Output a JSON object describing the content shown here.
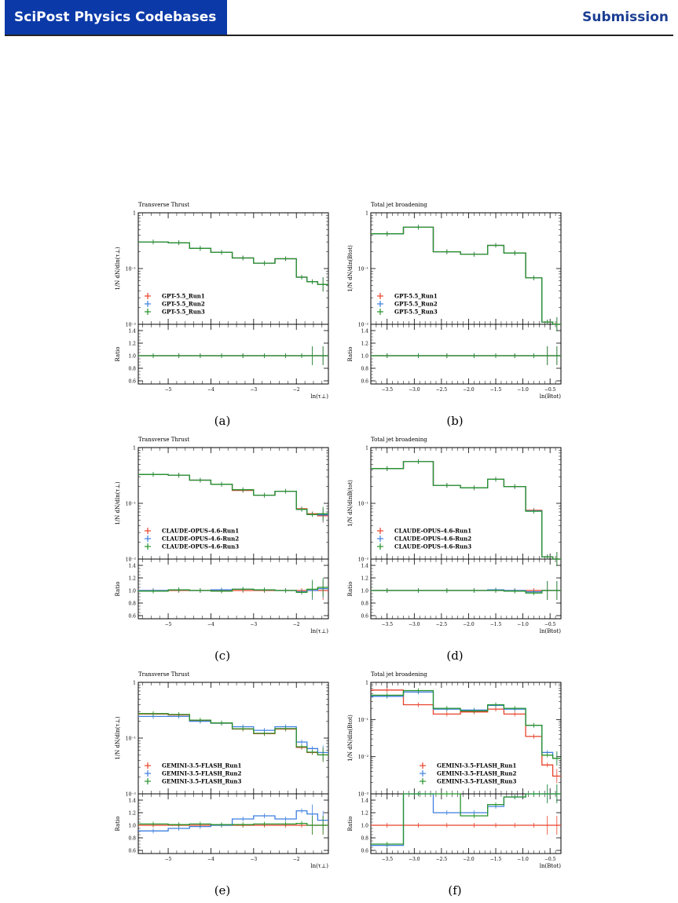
{
  "header": {
    "journal": "SciPost Physics Codebases",
    "status": "Submission"
  },
  "captions": [
    "(a)",
    "(b)",
    "(c)",
    "(d)",
    "(e)",
    "(f)"
  ],
  "chart_data": [
    {
      "type": "line",
      "panel": "(a)",
      "title": "Transverse Thrust",
      "ylabel": "1/N dN/dln(τ⊥)",
      "xlabel": "ln(τ⊥)",
      "ratio_ylabel": "Ratio",
      "log_y": true,
      "xlim": [
        -5.7,
        -1.25
      ],
      "ylim": [
        0.01,
        1.0
      ],
      "ratio_ylim": [
        0.55,
        1.5
      ],
      "x_ticks": [
        -5,
        -4,
        -3,
        -2
      ],
      "y_ticks": [
        "10⁻²",
        "10⁻¹",
        "1"
      ],
      "ratio_ticks": [
        0.6,
        0.8,
        1.0,
        1.2,
        1.4
      ],
      "legend_position": "bottom-left",
      "bin_edges": [
        -5.7,
        -5.0,
        -4.5,
        -4.0,
        -3.5,
        -3.0,
        -2.5,
        -2.0,
        -1.75,
        -1.5,
        -1.25
      ],
      "series": [
        {
          "name": "GPT-5.5_Run1",
          "color": "#e8422a",
          "values": [
            0.3,
            0.29,
            0.23,
            0.195,
            0.155,
            0.125,
            0.15,
            0.07,
            0.058,
            0.052
          ],
          "ratio": [
            1,
            1,
            1,
            1,
            1,
            1,
            1,
            1,
            1,
            1
          ]
        },
        {
          "name": "GPT-5.5_Run2",
          "color": "#3f7fe0",
          "values": [
            0.3,
            0.29,
            0.23,
            0.195,
            0.155,
            0.125,
            0.15,
            0.07,
            0.058,
            0.052
          ],
          "ratio": [
            1,
            1,
            1,
            1,
            1,
            1,
            1,
            1,
            1,
            1
          ]
        },
        {
          "name": "GPT-5.5_Run3",
          "color": "#27932b",
          "values": [
            0.3,
            0.29,
            0.23,
            0.195,
            0.155,
            0.125,
            0.15,
            0.07,
            0.058,
            0.052
          ],
          "ratio": [
            1,
            1,
            1,
            1,
            1,
            1,
            1,
            1,
            1,
            1
          ]
        }
      ]
    },
    {
      "type": "line",
      "panel": "(b)",
      "title": "Total jet broadening",
      "ylabel": "1/N dN/dln(Btot)",
      "xlabel": "ln(Btot)",
      "ratio_ylabel": "Ratio",
      "log_y": true,
      "xlim": [
        -3.8,
        -0.3
      ],
      "ylim": [
        0.01,
        1.0
      ],
      "ratio_ylim": [
        0.55,
        1.5
      ],
      "x_ticks": [
        -3.5,
        -3.0,
        -2.5,
        -2.0,
        -1.5,
        -1.0,
        -0.5
      ],
      "y_ticks": [
        "10⁻²",
        "10⁻¹",
        "1"
      ],
      "ratio_ticks": [
        0.6,
        0.8,
        1.0,
        1.2,
        1.4
      ],
      "legend_position": "bottom-left",
      "bin_edges": [
        -3.8,
        -3.2,
        -2.65,
        -2.15,
        -1.65,
        -1.35,
        -0.95,
        -0.65,
        -0.45,
        -0.3
      ],
      "series": [
        {
          "name": "GPT-5.5_Run1",
          "color": "#e8422a",
          "values": [
            0.42,
            0.55,
            0.2,
            0.18,
            0.26,
            0.19,
            0.068,
            0.011,
            0.009
          ],
          "ratio": [
            1,
            1,
            1,
            1,
            1,
            1,
            1,
            1,
            1
          ]
        },
        {
          "name": "GPT-5.5_Run2",
          "color": "#3f7fe0",
          "values": [
            0.42,
            0.55,
            0.2,
            0.18,
            0.26,
            0.19,
            0.068,
            0.011,
            0.009
          ],
          "ratio": [
            1,
            1,
            1,
            1,
            1,
            1,
            1,
            1,
            1
          ]
        },
        {
          "name": "GPT-5.5_Run3",
          "color": "#27932b",
          "values": [
            0.42,
            0.55,
            0.2,
            0.18,
            0.26,
            0.19,
            0.068,
            0.011,
            0.009
          ],
          "ratio": [
            1,
            1,
            1,
            1,
            1,
            1,
            1,
            1,
            1
          ]
        }
      ]
    },
    {
      "type": "line",
      "panel": "(c)",
      "title": "Transverse Thrust",
      "ylabel": "1/N dN/dln(τ⊥)",
      "xlabel": "ln(τ⊥)",
      "ratio_ylabel": "Ratio",
      "log_y": true,
      "xlim": [
        -5.7,
        -1.25
      ],
      "ylim": [
        0.01,
        1.0
      ],
      "ratio_ylim": [
        0.55,
        1.5
      ],
      "x_ticks": [
        -5,
        -4,
        -3,
        -2
      ],
      "y_ticks": [
        "10⁻²",
        "10⁻¹",
        "1"
      ],
      "ratio_ticks": [
        0.6,
        0.8,
        1.0,
        1.2,
        1.4
      ],
      "legend_position": "bottom-left",
      "bin_edges": [
        -5.7,
        -5.0,
        -4.5,
        -4.0,
        -3.5,
        -3.0,
        -2.5,
        -2.0,
        -1.75,
        -1.5,
        -1.25
      ],
      "series": [
        {
          "name": "CLAUDE-OPUS-4.6-Run1",
          "color": "#e8422a",
          "values": [
            0.33,
            0.32,
            0.26,
            0.22,
            0.17,
            0.14,
            0.165,
            0.08,
            0.065,
            0.06
          ],
          "ratio": [
            1,
            1,
            1,
            1,
            1,
            1,
            1,
            1,
            1,
            1
          ]
        },
        {
          "name": "CLAUDE-OPUS-4.6-Run2",
          "color": "#3f7fe0",
          "values": [
            0.33,
            0.32,
            0.26,
            0.22,
            0.175,
            0.14,
            0.165,
            0.078,
            0.063,
            0.062
          ],
          "ratio": [
            1.0,
            1.01,
            1.0,
            1.01,
            1.02,
            1.01,
            1.0,
            0.98,
            1.0,
            1.03
          ]
        },
        {
          "name": "CLAUDE-OPUS-4.6-Run3",
          "color": "#27932b",
          "values": [
            0.33,
            0.32,
            0.26,
            0.22,
            0.175,
            0.14,
            0.165,
            0.078,
            0.063,
            0.065
          ],
          "ratio": [
            0.99,
            1.01,
            1.0,
            0.99,
            1.02,
            1.01,
            1.0,
            0.97,
            1.02,
            1.05
          ]
        }
      ]
    },
    {
      "type": "line",
      "panel": "(d)",
      "title": "Total jet broadening",
      "ylabel": "1/N dN/dlnB(tot)",
      "xlabel": "ln(Btot)",
      "ratio_ylabel": "Ratio",
      "log_y": true,
      "xlim": [
        -3.8,
        -0.3
      ],
      "ylim": [
        0.01,
        1.0
      ],
      "ratio_ylim": [
        0.55,
        1.5
      ],
      "x_ticks": [
        -3.5,
        -3.0,
        -2.5,
        -2.0,
        -1.5,
        -1.0,
        -0.5
      ],
      "y_ticks": [
        "10⁻²",
        "10⁻¹",
        "1"
      ],
      "ratio_ticks": [
        0.6,
        0.8,
        1.0,
        1.2,
        1.4
      ],
      "legend_position": "bottom-left",
      "bin_edges": [
        -3.8,
        -3.2,
        -2.65,
        -2.15,
        -1.65,
        -1.35,
        -0.95,
        -0.65,
        -0.45,
        -0.3
      ],
      "series": [
        {
          "name": "CLAUDE-OPUS-4.6-Run1",
          "color": "#e8422a",
          "values": [
            0.42,
            0.56,
            0.21,
            0.19,
            0.27,
            0.2,
            0.075,
            0.011,
            0.009
          ],
          "ratio": [
            1,
            1,
            1,
            1,
            1,
            1,
            1,
            1,
            1
          ]
        },
        {
          "name": "CLAUDE-OPUS-4.6-Run2",
          "color": "#3f7fe0",
          "values": [
            0.42,
            0.56,
            0.21,
            0.19,
            0.27,
            0.2,
            0.073,
            0.011,
            0.009
          ],
          "ratio": [
            1.0,
            1.0,
            1.0,
            1.0,
            1.01,
            1.0,
            0.98,
            1.0,
            1.0
          ]
        },
        {
          "name": "CLAUDE-OPUS-4.6-Run3",
          "color": "#27932b",
          "values": [
            0.42,
            0.56,
            0.21,
            0.19,
            0.27,
            0.2,
            0.072,
            0.011,
            0.009
          ],
          "ratio": [
            1.0,
            1.0,
            1.0,
            1.0,
            1.0,
            0.99,
            0.96,
            1.0,
            1.0
          ]
        }
      ]
    },
    {
      "type": "line",
      "panel": "(e)",
      "title": "Transverse Thrust",
      "ylabel": "1/N dN/dln(τ⊥)",
      "xlabel": "ln(τ⊥)",
      "ratio_ylabel": "Ratio",
      "log_y": true,
      "xlim": [
        -5.7,
        -1.25
      ],
      "ylim": [
        0.01,
        1.0
      ],
      "ratio_ylim": [
        0.55,
        1.5
      ],
      "x_ticks": [
        -5,
        -4,
        -3,
        -2
      ],
      "y_ticks": [
        "10⁻²",
        "10⁻¹",
        "1"
      ],
      "ratio_ticks": [
        0.6,
        0.8,
        1.0,
        1.2,
        1.4
      ],
      "legend_position": "bottom-left",
      "bin_edges": [
        -5.7,
        -5.0,
        -4.5,
        -4.0,
        -3.5,
        -3.0,
        -2.5,
        -2.0,
        -1.75,
        -1.5,
        -1.25
      ],
      "series": [
        {
          "name": "GEMINI-3.5-FLASH_Run1",
          "color": "#e8422a",
          "values": [
            0.27,
            0.26,
            0.205,
            0.185,
            0.145,
            0.12,
            0.145,
            0.068,
            0.055,
            0.05
          ],
          "ratio": [
            1,
            1,
            1,
            1,
            1,
            1,
            1,
            1,
            1,
            1
          ]
        },
        {
          "name": "GEMINI-3.5-FLASH_Run2",
          "color": "#3f7fe0",
          "values": [
            0.245,
            0.245,
            0.2,
            0.185,
            0.16,
            0.138,
            0.16,
            0.085,
            0.065,
            0.055
          ],
          "ratio": [
            0.91,
            0.95,
            0.98,
            1.0,
            1.1,
            1.15,
            1.1,
            1.23,
            1.18,
            1.08
          ]
        },
        {
          "name": "GEMINI-3.5-FLASH_Run3",
          "color": "#27932b",
          "values": [
            0.275,
            0.265,
            0.21,
            0.187,
            0.147,
            0.122,
            0.148,
            0.07,
            0.056,
            0.05
          ],
          "ratio": [
            1.02,
            1.01,
            1.02,
            1.01,
            1.01,
            1.02,
            1.02,
            1.03,
            1.0,
            1.0
          ]
        }
      ]
    },
    {
      "type": "line",
      "panel": "(f)",
      "title": "Total jet broadening",
      "ylabel": "1/N dN/dln(Btot)",
      "xlabel": "ln(Btot)",
      "ratio_ylabel": "Ratio",
      "log_y": true,
      "xlim": [
        -3.8,
        -0.3
      ],
      "ylim": [
        0.001,
        1.0
      ],
      "ratio_ylim": [
        0.55,
        1.5
      ],
      "x_ticks": [
        -3.5,
        -3.0,
        -2.5,
        -2.0,
        -1.5,
        -1.0,
        -0.5
      ],
      "y_ticks": [
        "10⁻³",
        "10⁻²",
        "10⁻¹",
        "1"
      ],
      "ratio_ticks": [
        0.6,
        0.8,
        1.0,
        1.2,
        1.4
      ],
      "legend_position": "bottom-center",
      "bin_edges": [
        -3.8,
        -3.2,
        -2.65,
        -2.15,
        -1.65,
        -1.35,
        -0.95,
        -0.65,
        -0.45,
        -0.3
      ],
      "series": [
        {
          "name": "GEMINI-3.5-FLASH_Run1",
          "color": "#e8422a",
          "values": [
            0.62,
            0.25,
            0.14,
            0.16,
            0.19,
            0.14,
            0.035,
            0.006,
            0.003
          ],
          "ratio": [
            1,
            1,
            1,
            1,
            1,
            1,
            1,
            1,
            1
          ]
        },
        {
          "name": "GEMINI-3.5-FLASH_Run2",
          "color": "#3f7fe0",
          "values": [
            0.42,
            0.55,
            0.19,
            0.18,
            0.24,
            0.19,
            0.07,
            0.013,
            0.009
          ],
          "ratio": [
            0.68,
            1.5,
            1.2,
            1.2,
            1.3,
            1.45,
            1.5,
            1.5,
            1.5
          ]
        },
        {
          "name": "GEMINI-3.5-FLASH_Run3",
          "color": "#27932b",
          "values": [
            0.45,
            0.6,
            0.2,
            0.17,
            0.25,
            0.2,
            0.07,
            0.011,
            0.009
          ],
          "ratio": [
            0.7,
            1.5,
            1.5,
            1.15,
            1.33,
            1.45,
            1.5,
            1.5,
            1.5
          ]
        }
      ]
    }
  ]
}
